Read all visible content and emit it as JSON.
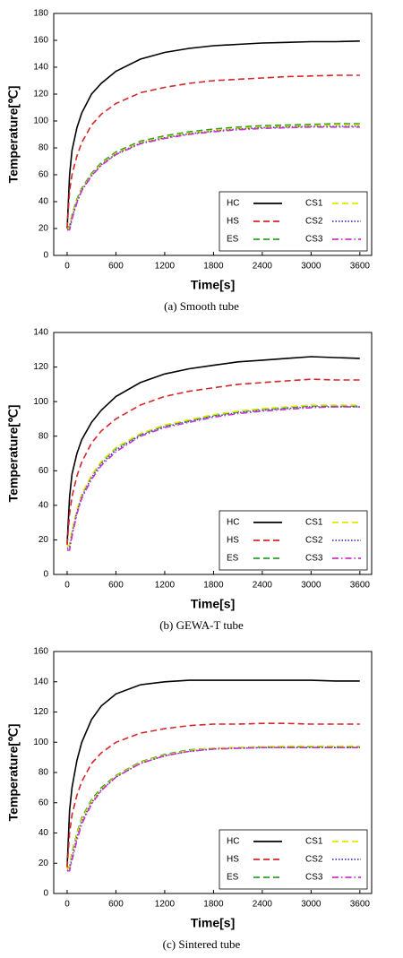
{
  "chart_data": [
    {
      "type": "line",
      "caption": "(a)  Smooth tube",
      "x_label": "Time[s]",
      "y_label": "Temperature[℃]",
      "x": [
        0,
        30,
        60,
        120,
        180,
        300,
        420,
        600,
        900,
        1200,
        1500,
        1800,
        2100,
        2400,
        2700,
        3000,
        3300,
        3600
      ],
      "xlim": [
        -165,
        3745
      ],
      "xticks": [
        0,
        600,
        1200,
        1800,
        2400,
        3000,
        3600
      ],
      "ylim": [
        0,
        180
      ],
      "yticks": [
        0,
        20,
        40,
        60,
        80,
        100,
        120,
        140,
        160,
        180
      ],
      "legend": "lower right",
      "series": [
        {
          "name": "HC",
          "color": "#000000",
          "dash": "solid",
          "values": [
            20,
            60,
            78,
            95,
            106,
            120,
            128,
            137,
            146,
            151,
            154,
            156,
            157,
            158,
            158.5,
            159,
            159,
            159.5
          ]
        },
        {
          "name": "HS",
          "color": "#d62728",
          "dash": "dashed",
          "values": [
            20,
            48,
            60,
            74,
            84,
            97,
            105,
            113,
            121,
            125,
            128,
            130,
            131,
            132,
            133,
            133.5,
            134,
            134
          ]
        },
        {
          "name": "ES",
          "color": "#2ca02c",
          "dash": "dashed",
          "values": [
            20,
            22,
            30,
            42,
            50,
            61,
            69,
            77,
            85,
            89,
            92,
            94,
            95.5,
            96.5,
            97,
            97.5,
            98,
            98
          ]
        },
        {
          "name": "CS1",
          "color": "#e6e600",
          "dash": "dashed",
          "values": [
            19,
            21,
            29,
            41,
            49,
            60,
            68,
            76,
            84,
            88,
            91,
            93,
            94.5,
            95.5,
            96,
            96.5,
            97,
            97
          ]
        },
        {
          "name": "CS2",
          "color": "#4040c0",
          "dash": "dotted",
          "values": [
            19,
            20,
            28,
            40,
            48.5,
            59.5,
            67.5,
            75.5,
            83.5,
            87.5,
            90.5,
            92.5,
            94,
            95,
            95.5,
            96,
            96,
            96
          ]
        },
        {
          "name": "CS3",
          "color": "#cc33cc",
          "dash": "dashdot",
          "values": [
            19,
            19,
            27,
            39,
            48,
            59,
            67,
            75,
            83,
            87,
            90,
            92,
            93.5,
            94.5,
            95,
            95.5,
            95.5,
            95.5
          ]
        }
      ]
    },
    {
      "type": "line",
      "caption": "(b)  GEWA-T  tube",
      "x_label": "Time[s]",
      "y_label": "Temperature[℃]",
      "x": [
        0,
        30,
        60,
        120,
        180,
        300,
        420,
        600,
        900,
        1200,
        1500,
        1800,
        2100,
        2400,
        2700,
        3000,
        3300,
        3600
      ],
      "xlim": [
        -165,
        3745
      ],
      "xticks": [
        0,
        600,
        1200,
        1800,
        2400,
        3000,
        3600
      ],
      "ylim": [
        0,
        140
      ],
      "yticks": [
        0,
        20,
        40,
        60,
        80,
        100,
        120,
        140
      ],
      "legend": "lower right",
      "series": [
        {
          "name": "HC",
          "color": "#000000",
          "dash": "solid",
          "values": [
            18,
            45,
            58,
            70,
            78,
            88,
            95,
            103,
            111,
            116,
            119,
            121,
            123,
            124,
            125,
            126,
            125.5,
            125
          ]
        },
        {
          "name": "HS",
          "color": "#d62728",
          "dash": "dashed",
          "values": [
            17,
            35,
            45,
            57,
            65,
            76,
            83,
            90,
            98,
            103,
            106,
            108,
            110,
            111,
            112,
            113,
            112.5,
            112.5
          ]
        },
        {
          "name": "ES",
          "color": "#2ca02c",
          "dash": "dashed",
          "values": [
            16,
            17,
            25,
            37,
            46,
            57,
            65,
            73,
            81,
            86,
            89,
            92,
            94,
            95.5,
            96.5,
            97.5,
            97.5,
            97.5
          ]
        },
        {
          "name": "CS1",
          "color": "#e6e600",
          "dash": "dashed",
          "values": [
            16,
            17,
            25.5,
            37.5,
            46.5,
            57.5,
            65.5,
            73.5,
            81.5,
            86.5,
            89.5,
            92.5,
            94.5,
            96,
            97,
            98,
            98,
            98
          ]
        },
        {
          "name": "CS2",
          "color": "#4040c0",
          "dash": "dotted",
          "values": [
            15,
            15.5,
            23.5,
            36,
            45,
            56,
            64,
            72,
            80.5,
            85.5,
            88.5,
            91.5,
            93.5,
            95,
            96,
            97,
            97,
            97
          ]
        },
        {
          "name": "CS3",
          "color": "#cc33cc",
          "dash": "dashdot",
          "values": [
            14,
            14,
            22,
            35,
            44,
            55,
            63,
            71,
            80,
            85,
            88,
            91,
            93,
            94.5,
            95.5,
            96.5,
            97,
            97
          ]
        }
      ]
    },
    {
      "type": "line",
      "caption": "(c)  Sintered tube",
      "x_label": "Time[s]",
      "y_label": "Temperature[℃]",
      "x": [
        0,
        30,
        60,
        120,
        180,
        300,
        420,
        600,
        900,
        1200,
        1500,
        1800,
        2100,
        2400,
        2700,
        3000,
        3300,
        3600
      ],
      "xlim": [
        -165,
        3745
      ],
      "xticks": [
        0,
        600,
        1200,
        1800,
        2400,
        3000,
        3600
      ],
      "ylim": [
        0,
        160
      ],
      "yticks": [
        0,
        20,
        40,
        60,
        80,
        100,
        120,
        140,
        160
      ],
      "legend": "lower right",
      "series": [
        {
          "name": "HC",
          "color": "#000000",
          "dash": "solid",
          "values": [
            18,
            55,
            70,
            88,
            100,
            115,
            124,
            132,
            138,
            140,
            141,
            141,
            141,
            141,
            141,
            141,
            140.5,
            140.5
          ]
        },
        {
          "name": "HS",
          "color": "#d62728",
          "dash": "dashed",
          "values": [
            17,
            40,
            52,
            65,
            74,
            86,
            93,
            100,
            106,
            109,
            111,
            112,
            112,
            112.5,
            112.5,
            112,
            112,
            112
          ]
        },
        {
          "name": "ES",
          "color": "#2ca02c",
          "dash": "dashed",
          "values": [
            16,
            18,
            27,
            40,
            50,
            62,
            70,
            78,
            87,
            92,
            95,
            96,
            96.5,
            97,
            97,
            97,
            97,
            97
          ]
        },
        {
          "name": "CS1",
          "color": "#e6e600",
          "dash": "dashed",
          "values": [
            16,
            17.5,
            26,
            39,
            49,
            61,
            69,
            77.5,
            86.5,
            91.5,
            94.5,
            96,
            96.5,
            97,
            97.5,
            97.5,
            97.5,
            97.5
          ]
        },
        {
          "name": "CS2",
          "color": "#4040c0",
          "dash": "dotted",
          "values": [
            15,
            16,
            24,
            37,
            47.5,
            60,
            68.5,
            77,
            86,
            91,
            94,
            95.5,
            96,
            96.5,
            96.5,
            96.5,
            96.5,
            96.5
          ]
        },
        {
          "name": "CS3",
          "color": "#cc33cc",
          "dash": "dashdot",
          "values": [
            15,
            15,
            22,
            35,
            46,
            59,
            68,
            77,
            86,
            91,
            94,
            95.5,
            96,
            96.5,
            96.5,
            96.5,
            96.5,
            96.5
          ]
        }
      ]
    }
  ]
}
